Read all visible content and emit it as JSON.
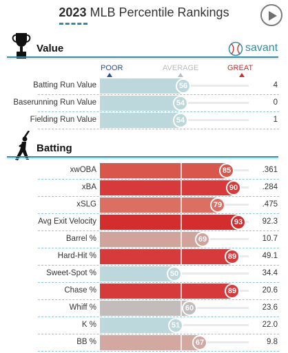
{
  "header": {
    "year": "2023",
    "title": "MLB Percentile Rankings"
  },
  "savant_label": "savant",
  "scale": {
    "poor": "POOR",
    "average": "AVERAGE",
    "great": "GREAT",
    "poor_color": "#2a4f9a",
    "average_color": "#b8bcbf",
    "great_color": "#c62f2f"
  },
  "sections": [
    {
      "title": "Value",
      "rows": [
        {
          "label": "Batting Run Value",
          "percentile": 56,
          "value": "4",
          "color": "#bcd8dd"
        },
        {
          "label": "Baserunning Run Value",
          "percentile": 54,
          "value": "0",
          "color": "#bcd8dd"
        },
        {
          "label": "Fielding Run Value",
          "percentile": 54,
          "value": "1",
          "color": "#bcd8dd"
        }
      ]
    },
    {
      "title": "Batting",
      "rows": [
        {
          "label": "xwOBA",
          "percentile": 85,
          "value": ".361",
          "color": "#d8564b"
        },
        {
          "label": "xBA",
          "percentile": 90,
          "value": ".284",
          "color": "#d63a3a"
        },
        {
          "label": "xSLG",
          "percentile": 79,
          "value": ".475",
          "color": "#db6f62"
        },
        {
          "label": "Avg Exit Velocity",
          "percentile": 93,
          "value": "92.3",
          "color": "#d42d2d"
        },
        {
          "label": "Barrel %",
          "percentile": 69,
          "value": "10.7",
          "color": "#d0a49b"
        },
        {
          "label": "Hard-Hit %",
          "percentile": 89,
          "value": "49.1",
          "color": "#d63a3a"
        },
        {
          "label": "Sweet-Spot %",
          "percentile": 50,
          "value": "34.4",
          "color": "#bcd8dd"
        },
        {
          "label": "Chase %",
          "percentile": 89,
          "value": "20.6",
          "color": "#d63a3a"
        },
        {
          "label": "Whiff %",
          "percentile": 60,
          "value": "23.6",
          "color": "#c2bcbb"
        },
        {
          "label": "K %",
          "percentile": 51,
          "value": "22.0",
          "color": "#bcd8dd"
        },
        {
          "label": "BB %",
          "percentile": 67,
          "value": "9.8",
          "color": "#d2a8a0"
        }
      ]
    }
  ]
}
